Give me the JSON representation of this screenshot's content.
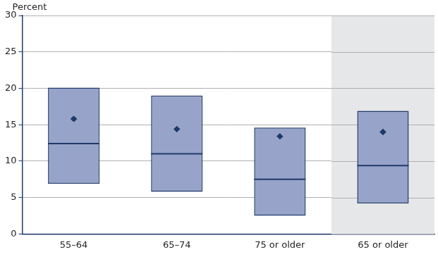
{
  "chart_data": {
    "type": "box",
    "ylabel": "Percent",
    "categories": [
      "55–64",
      "65–74",
      "75 or older",
      "65 or older"
    ],
    "low": [
      6.9,
      5.8,
      2.5,
      4.2
    ],
    "high": [
      20.1,
      19.0,
      14.6,
      16.9
    ],
    "median": [
      12.4,
      11.0,
      7.5,
      9.4
    ],
    "mean": [
      15.8,
      14.4,
      13.4,
      14.0
    ],
    "color": "#97a3c9",
    "ylim": [
      0,
      30
    ],
    "yticks": [
      0,
      5,
      10,
      15,
      20,
      25,
      30
    ],
    "grid": true
  }
}
